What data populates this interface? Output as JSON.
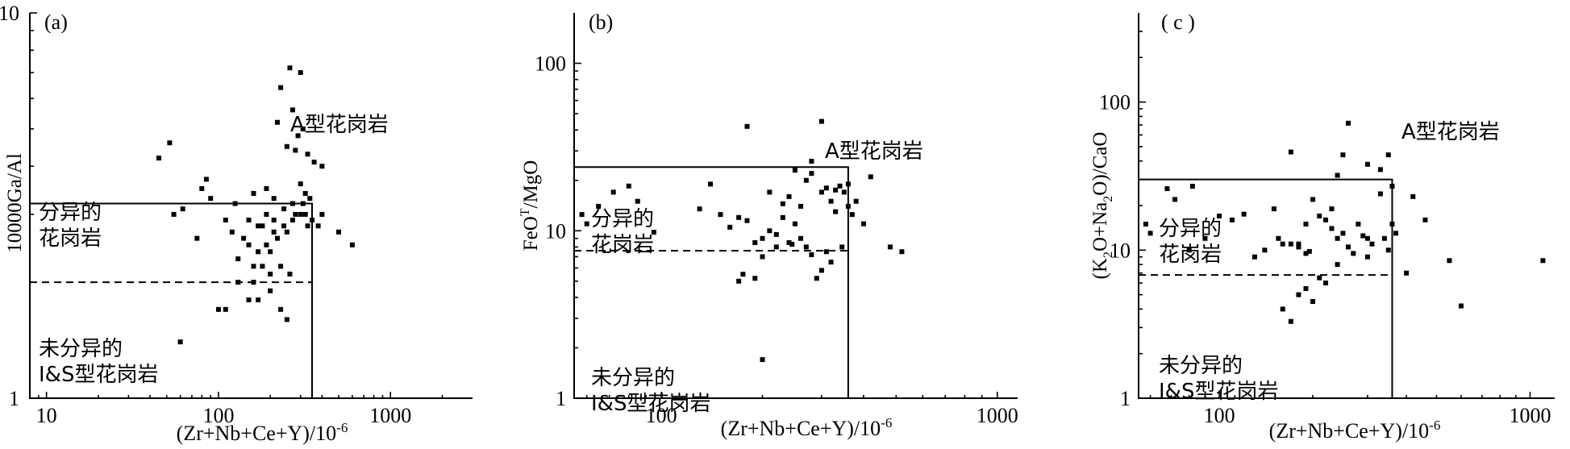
{
  "chart_data": [
    {
      "type": "scatter",
      "panel_label": "(a)",
      "xscale": "log",
      "yscale": "log",
      "xlim": [
        8,
        3000
      ],
      "ylim": [
        1,
        10
      ],
      "xticks": [
        10,
        100,
        1000
      ],
      "xtick_labels": [
        "10",
        "100",
        "1000"
      ],
      "yticks": [
        1,
        10
      ],
      "ytick_labels": [
        "1",
        "10"
      ],
      "xlabel": "(Zr+Nb+Ce+Y)/10",
      "xlabel_sup": "-6",
      "ylabel": "10000Ga/Al",
      "box": {
        "x_max": 350,
        "y_max": 3.2
      },
      "dashed_line_y": 2.0,
      "region_labels": {
        "a_type": "A型花岗岩",
        "fractionated_1": "分异的",
        "fractionated_2": "花岗岩",
        "unfractionated_1": "未分异的",
        "unfractionated_2": "I&S型花岗岩"
      },
      "points": [
        [
          45,
          4.2
        ],
        [
          52,
          4.6
        ],
        [
          55,
          3.0
        ],
        [
          62,
          3.1
        ],
        [
          80,
          3.5
        ],
        [
          85,
          3.7
        ],
        [
          90,
          3.3
        ],
        [
          75,
          2.6
        ],
        [
          110,
          2.9
        ],
        [
          120,
          2.7
        ],
        [
          125,
          3.2
        ],
        [
          130,
          2.3
        ],
        [
          140,
          2.6
        ],
        [
          150,
          2.5
        ],
        [
          160,
          2.2
        ],
        [
          170,
          2.4
        ],
        [
          180,
          2.8
        ],
        [
          190,
          2.5
        ],
        [
          200,
          2.1
        ],
        [
          210,
          2.7
        ],
        [
          220,
          2.6
        ],
        [
          230,
          2.2
        ],
        [
          240,
          2.8
        ],
        [
          250,
          2.7
        ],
        [
          260,
          2.1
        ],
        [
          270,
          2.9
        ],
        [
          280,
          3.0
        ],
        [
          300,
          3.0
        ],
        [
          310,
          3.2
        ],
        [
          320,
          3.0
        ],
        [
          330,
          2.8
        ],
        [
          340,
          3.3
        ],
        [
          350,
          2.9
        ],
        [
          380,
          2.8
        ],
        [
          400,
          3.0
        ],
        [
          500,
          2.7
        ],
        [
          600,
          2.5
        ],
        [
          130,
          2.0
        ],
        [
          180,
          2.2
        ],
        [
          200,
          2.4
        ],
        [
          150,
          2.9
        ],
        [
          170,
          2.8
        ],
        [
          190,
          3.0
        ],
        [
          210,
          2.9
        ],
        [
          100,
          1.7
        ],
        [
          110,
          1.7
        ],
        [
          150,
          1.8
        ],
        [
          170,
          1.8
        ],
        [
          200,
          1.9
        ],
        [
          230,
          1.7
        ],
        [
          250,
          1.6
        ],
        [
          60,
          1.4
        ],
        [
          230,
          6.4
        ],
        [
          260,
          7.2
        ],
        [
          300,
          7.0
        ],
        [
          220,
          5.2
        ],
        [
          270,
          5.6
        ],
        [
          310,
          5.0
        ],
        [
          250,
          4.5
        ],
        [
          280,
          4.4
        ],
        [
          290,
          4.8
        ],
        [
          330,
          4.3
        ],
        [
          360,
          4.1
        ],
        [
          400,
          4.0
        ],
        [
          160,
          3.4
        ],
        [
          190,
          3.5
        ],
        [
          210,
          3.3
        ],
        [
          240,
          3.1
        ],
        [
          270,
          3.2
        ],
        [
          300,
          3.6
        ],
        [
          320,
          3.4
        ],
        [
          160,
          2.0
        ]
      ]
    },
    {
      "type": "scatter",
      "panel_label": "(b)",
      "xscale": "log",
      "yscale": "log",
      "xlim": [
        55,
        1150
      ],
      "ylim": [
        1,
        200
      ],
      "xticks": [
        100,
        1000
      ],
      "xtick_labels": [
        "100",
        "1000"
      ],
      "yticks": [
        1,
        10,
        100
      ],
      "ytick_labels": [
        "1",
        "10",
        "100"
      ],
      "xlabel": "(Zr+Nb+Ce+Y)/10",
      "xlabel_sup": "-6",
      "ylabel": "FeO",
      "ylabel_sup": "T",
      "ylabel_tail": "/MgO",
      "box": {
        "x_max": 360,
        "y_max": 24
      },
      "dashed_line_y": 7.6,
      "region_labels": {
        "a_type": "A型花岗岩",
        "fractionated_1": "分异的",
        "fractionated_2": "花岗岩",
        "unfractionated_1": "未分异的",
        "unfractionated_2": "I&S型花岗岩"
      },
      "points": [
        [
          58,
          12.5
        ],
        [
          60,
          11.0
        ],
        [
          65,
          14.0
        ],
        [
          72,
          17.0
        ],
        [
          80,
          18.5
        ],
        [
          85,
          15.0
        ],
        [
          95,
          9.8
        ],
        [
          130,
          13.5
        ],
        [
          140,
          19.0
        ],
        [
          150,
          12.5
        ],
        [
          160,
          10.5
        ],
        [
          170,
          12.0
        ],
        [
          180,
          11.5
        ],
        [
          190,
          8.5
        ],
        [
          200,
          9.0
        ],
        [
          210,
          10.0
        ],
        [
          220,
          9.5
        ],
        [
          230,
          12.0
        ],
        [
          240,
          16.0
        ],
        [
          250,
          11.0
        ],
        [
          260,
          14.0
        ],
        [
          270,
          8.0
        ],
        [
          280,
          22.0
        ],
        [
          300,
          17.0
        ],
        [
          310,
          18.0
        ],
        [
          320,
          15.0
        ],
        [
          330,
          17.5
        ],
        [
          340,
          18.5
        ],
        [
          350,
          17.0
        ],
        [
          360,
          19.0
        ],
        [
          380,
          15.0
        ],
        [
          400,
          11.0
        ],
        [
          420,
          21.0
        ],
        [
          480,
          8.0
        ],
        [
          520,
          7.5
        ],
        [
          170,
          5.0
        ],
        [
          175,
          5.5
        ],
        [
          190,
          5.2
        ],
        [
          200,
          7.0
        ],
        [
          280,
          7.2
        ],
        [
          290,
          5.2
        ],
        [
          300,
          5.8
        ],
        [
          320,
          6.5
        ],
        [
          220,
          8.0
        ],
        [
          240,
          8.5
        ],
        [
          260,
          9.0
        ],
        [
          180,
          42.0
        ],
        [
          300,
          45.0
        ],
        [
          280,
          26.0
        ],
        [
          250,
          23.0
        ],
        [
          270,
          20.0
        ],
        [
          330,
          13.0
        ],
        [
          310,
          7.5
        ],
        [
          345,
          8.0
        ],
        [
          360,
          14.0
        ],
        [
          370,
          12.5
        ],
        [
          200,
          1.7
        ],
        [
          210,
          17.0
        ],
        [
          230,
          14.5
        ],
        [
          245,
          8.3
        ]
      ]
    },
    {
      "type": "scatter",
      "panel_label": "( c )",
      "xscale": "log",
      "yscale": "log",
      "xlim": [
        55,
        1200
      ],
      "ylim": [
        1,
        400
      ],
      "xticks": [
        100,
        1000
      ],
      "xtick_labels": [
        "100",
        "1000"
      ],
      "yticks": [
        1,
        10,
        100
      ],
      "ytick_labels": [
        "1",
        "10",
        "100"
      ],
      "xlabel": "(Zr+Nb+Ce+Y)/10",
      "xlabel_sup": "-6",
      "ylabel": "(K",
      "ylabel_sub1": "2",
      "ylabel_mid": "O+Na",
      "ylabel_sub2": "2",
      "ylabel_tail": "O)/CaO",
      "box": {
        "x_max": 360,
        "y_max": 30
      },
      "dashed_line_y": 6.8,
      "region_labels": {
        "a_type": "A型花岗岩",
        "fractionated_1": "分异的",
        "fractionated_2": "花岗岩",
        "unfractionated_1": "未分异的",
        "unfractionated_2": "I&S型花岗岩"
      },
      "points": [
        [
          58,
          15.0
        ],
        [
          60,
          13.0
        ],
        [
          68,
          26.0
        ],
        [
          72,
          22.0
        ],
        [
          80,
          10.0
        ],
        [
          82,
          27.0
        ],
        [
          90,
          12.0
        ],
        [
          100,
          17.0
        ],
        [
          110,
          16.0
        ],
        [
          120,
          17.5
        ],
        [
          130,
          9.0
        ],
        [
          140,
          10.0
        ],
        [
          150,
          19.0
        ],
        [
          155,
          12.0
        ],
        [
          160,
          11.0
        ],
        [
          170,
          11.0
        ],
        [
          180,
          10.5
        ],
        [
          190,
          9.5
        ],
        [
          200,
          22.0
        ],
        [
          210,
          17.0
        ],
        [
          220,
          16.0
        ],
        [
          230,
          14.0
        ],
        [
          240,
          12.0
        ],
        [
          250,
          13.0
        ],
        [
          260,
          10.5
        ],
        [
          270,
          9.5
        ],
        [
          280,
          15.0
        ],
        [
          290,
          12.5
        ],
        [
          300,
          12.0
        ],
        [
          310,
          11.0
        ],
        [
          330,
          24.0
        ],
        [
          340,
          12.0
        ],
        [
          350,
          10.0
        ],
        [
          360,
          15.0
        ],
        [
          370,
          13.0
        ],
        [
          400,
          7.0
        ],
        [
          420,
          23.0
        ],
        [
          460,
          16.0
        ],
        [
          550,
          8.5
        ],
        [
          600,
          4.2
        ],
        [
          1100,
          8.5
        ],
        [
          160,
          4.0
        ],
        [
          170,
          3.3
        ],
        [
          180,
          5.0
        ],
        [
          190,
          5.5
        ],
        [
          200,
          4.5
        ],
        [
          210,
          6.5
        ],
        [
          220,
          6.0
        ],
        [
          240,
          8.0
        ],
        [
          170,
          46.0
        ],
        [
          250,
          44.0
        ],
        [
          260,
          72.0
        ],
        [
          300,
          38.0
        ],
        [
          330,
          35.0
        ],
        [
          350,
          44.0
        ],
        [
          240,
          32.0
        ],
        [
          360,
          27.0
        ],
        [
          180,
          11.0
        ],
        [
          190,
          15.0
        ],
        [
          195,
          9.8
        ],
        [
          230,
          19.0
        ],
        [
          300,
          9.0
        ]
      ]
    }
  ]
}
